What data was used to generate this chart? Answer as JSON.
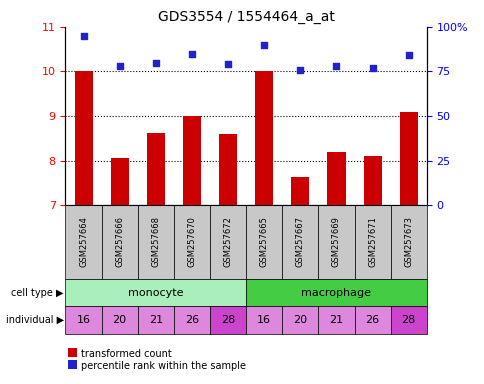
{
  "title": "GDS3554 / 1554464_a_at",
  "samples": [
    "GSM257664",
    "GSM257666",
    "GSM257668",
    "GSM257670",
    "GSM257672",
    "GSM257665",
    "GSM257667",
    "GSM257669",
    "GSM257671",
    "GSM257673"
  ],
  "transformed_count": [
    10.0,
    8.05,
    8.62,
    9.0,
    8.6,
    10.0,
    7.62,
    8.2,
    8.1,
    9.1
  ],
  "percentile_rank_pct": [
    95,
    78,
    80,
    85,
    79,
    90,
    76,
    78,
    77,
    84
  ],
  "cell_types": [
    "monocyte",
    "monocyte",
    "monocyte",
    "monocyte",
    "monocyte",
    "macrophage",
    "macrophage",
    "macrophage",
    "macrophage",
    "macrophage"
  ],
  "individuals": [
    "16",
    "20",
    "21",
    "26",
    "28",
    "16",
    "20",
    "21",
    "26",
    "28"
  ],
  "ylim_left": [
    7,
    11
  ],
  "ylim_right": [
    0,
    100
  ],
  "yticks_left": [
    7,
    8,
    9,
    10,
    11
  ],
  "yticks_right": [
    0,
    25,
    50,
    75,
    100
  ],
  "yticklabels_right": [
    "0",
    "25",
    "50",
    "75",
    "100%"
  ],
  "bar_color": "#cc0000",
  "dot_color": "#2222cc",
  "monocyte_color": "#aaeebb",
  "macrophage_color": "#44cc44",
  "individual_color_light": "#dd88dd",
  "individual_color_dark": "#cc44cc",
  "individual_colors_idx": [
    0,
    0,
    0,
    0,
    1,
    0,
    0,
    0,
    0,
    1
  ],
  "label_bg": "#c8c8c8",
  "legend_red_label": "transformed count",
  "legend_blue_label": "percentile rank within the sample"
}
